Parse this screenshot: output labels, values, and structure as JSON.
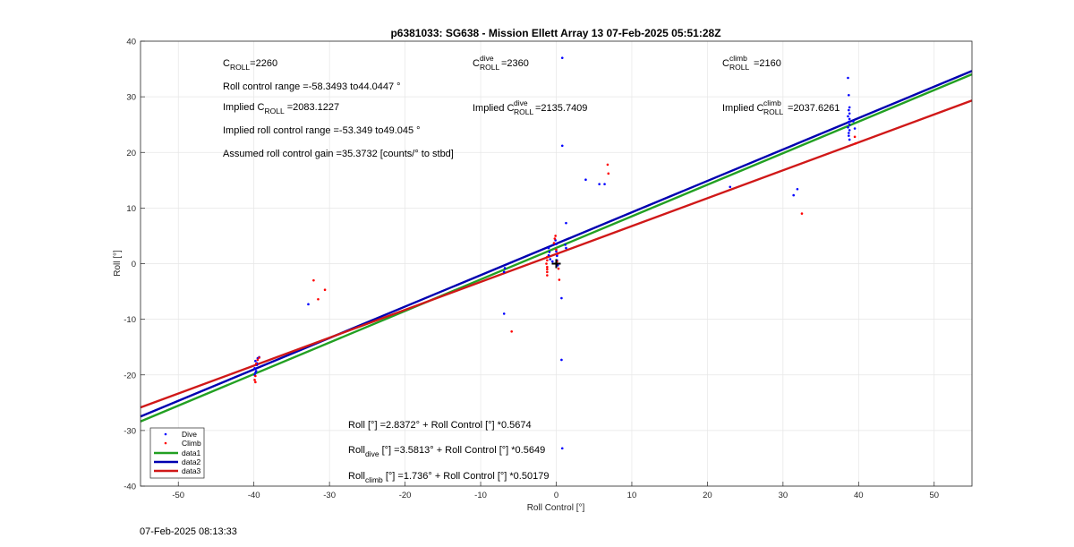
{
  "chart_data": {
    "type": "scatter",
    "title": "p6381033: SG638 - Mission Ellett Array 13 07-Feb-2025 05:51:28Z",
    "xlabel": "Roll Control [°]",
    "ylabel": "Roll [°]",
    "xlim": [
      -55,
      55
    ],
    "ylim": [
      -40,
      40
    ],
    "xticks": [
      "-50",
      "-40",
      "-30",
      "-20",
      "-10",
      "0",
      "10",
      "20",
      "30",
      "40",
      "50"
    ],
    "yticks": [
      "-40",
      "-30",
      "-20",
      "-10",
      "0",
      "10",
      "20",
      "30",
      "40"
    ],
    "grid": true,
    "legend_position": "bottom-left",
    "legend": [
      "Dive",
      "Climb",
      "data1",
      "data2",
      "data3"
    ],
    "colors": {
      "dive": "#0000ff",
      "climb": "#ff0000",
      "data1": "#22a022",
      "data2": "#0000b0",
      "data3": "#d01818"
    },
    "series": [
      {
        "name": "Dive",
        "kind": "scatter",
        "points": [
          [
            -39.5,
            -17.0
          ],
          [
            -39.3,
            -16.8
          ],
          [
            -39.8,
            -17.5
          ],
          [
            -39.6,
            -18.2
          ],
          [
            -39.9,
            -18.8
          ],
          [
            -39.7,
            -19.3
          ],
          [
            -39.8,
            -19.6
          ],
          [
            -39.9,
            -20.0
          ],
          [
            -39.6,
            -17.9
          ],
          [
            -32.8,
            -7.3
          ],
          [
            -6.9,
            -9.0
          ],
          [
            -6.9,
            -1.5
          ],
          [
            -6.8,
            -0.8
          ],
          [
            -1.0,
            2.8
          ],
          [
            -0.9,
            2.1
          ],
          [
            -1.0,
            1.5
          ],
          [
            -0.8,
            0.8
          ],
          [
            -0.5,
            0.4
          ],
          [
            0.0,
            3.5
          ],
          [
            0.0,
            2.2
          ],
          [
            0.1,
            1.4
          ],
          [
            0.1,
            0.6
          ],
          [
            -0.1,
            4.2
          ],
          [
            0.2,
            -0.3
          ],
          [
            0.8,
            37.0
          ],
          [
            0.8,
            21.2
          ],
          [
            0.7,
            -6.2
          ],
          [
            0.7,
            -17.3
          ],
          [
            0.8,
            -33.2
          ],
          [
            1.3,
            7.3
          ],
          [
            1.2,
            3.4
          ],
          [
            1.3,
            2.8
          ],
          [
            3.9,
            15.1
          ],
          [
            5.7,
            14.3
          ],
          [
            6.4,
            14.3
          ],
          [
            23.0,
            13.8
          ],
          [
            31.4,
            12.3
          ],
          [
            31.9,
            13.4
          ],
          [
            38.6,
            33.4
          ],
          [
            38.7,
            30.3
          ],
          [
            38.8,
            28.1
          ],
          [
            38.7,
            27.6
          ],
          [
            38.8,
            27.0
          ],
          [
            38.6,
            26.5
          ],
          [
            38.8,
            26.0
          ],
          [
            38.7,
            25.5
          ],
          [
            38.8,
            25.0
          ],
          [
            38.6,
            24.5
          ],
          [
            38.8,
            24.0
          ],
          [
            38.7,
            23.5
          ],
          [
            38.7,
            23.0
          ],
          [
            38.8,
            22.3
          ],
          [
            39.3,
            25.6
          ],
          [
            39.5,
            24.3
          ]
        ]
      },
      {
        "name": "Climb",
        "kind": "scatter",
        "points": [
          [
            -39.3,
            -16.9
          ],
          [
            -39.8,
            -20.2
          ],
          [
            -39.9,
            -20.9
          ],
          [
            -39.8,
            -21.3
          ],
          [
            -39.7,
            -18.0
          ],
          [
            -39.5,
            -17.3
          ],
          [
            -32.1,
            -3.0
          ],
          [
            -31.5,
            -6.4
          ],
          [
            -30.6,
            -4.7
          ],
          [
            -5.9,
            -12.2
          ],
          [
            -1.2,
            -2.1
          ],
          [
            -1.2,
            -1.5
          ],
          [
            -1.2,
            -1.0
          ],
          [
            -1.2,
            -0.6
          ],
          [
            -1.3,
            0.0
          ],
          [
            -1.2,
            0.6
          ],
          [
            -1.2,
            1.2
          ],
          [
            -0.3,
            3.7
          ],
          [
            -0.2,
            4.5
          ],
          [
            -0.1,
            5.0
          ],
          [
            0.0,
            2.5
          ],
          [
            0.2,
            1.8
          ],
          [
            0.1,
            0.4
          ],
          [
            0.3,
            -0.9
          ],
          [
            0.4,
            -2.9
          ],
          [
            6.8,
            17.8
          ],
          [
            6.9,
            16.2
          ],
          [
            32.5,
            9.0
          ],
          [
            39.6,
            21.6
          ],
          [
            39.5,
            22.8
          ]
        ]
      },
      {
        "name": "data1",
        "kind": "line",
        "intercept": 2.8372,
        "slope": 0.5674
      },
      {
        "name": "data2",
        "kind": "line",
        "intercept": 3.5813,
        "slope": 0.5649
      },
      {
        "name": "data3",
        "kind": "line",
        "intercept": 1.736,
        "slope": 0.50179
      }
    ],
    "marker": [
      0,
      0
    ],
    "annotations": {
      "c_roll_label": "C",
      "c_roll_sub": "ROLL",
      "c_roll_value": "=2260",
      "roll_range": "Roll control range =-58.3493 to44.0447 °",
      "implied_c_prefix": "Implied C",
      "implied_c_sub": "ROLL",
      "implied_c_value": "=2083.1227",
      "implied_range": "Implied roll control range =-53.349 to49.045 °",
      "gain": "Assumed roll control gain =35.3732 [counts/° to stbd]",
      "c_dive_label": "C",
      "c_dive_sup": "dive",
      "c_dive_sub": "ROLL",
      "c_dive_value": "=2360",
      "implied_dive_prefix": "Implied C",
      "implied_dive_sup": "dive",
      "implied_dive_sub": "ROLL",
      "implied_dive_value": "=2135.7409",
      "c_climb_label": "C",
      "c_climb_sup": "climb",
      "c_climb_sub": "ROLL",
      "c_climb_value": "=2160",
      "implied_climb_prefix": "Implied C",
      "implied_climb_sup": "climb",
      "implied_climb_sub": "ROLL",
      "implied_climb_value": "=2037.6261",
      "fit_all": "Roll [°] =2.8372° + Roll Control [°] *0.5674",
      "fit_dive_prefix": "Roll",
      "fit_dive_sub": "dive",
      "fit_dive_rest": " [°] =3.5813° + Roll Control [°] *0.5649",
      "fit_climb_prefix": "Roll",
      "fit_climb_sub": "climb",
      "fit_climb_rest": " [°] =1.736° + Roll Control [°] *0.50179"
    }
  },
  "footer": {
    "timestamp": "07-Feb-2025 08:13:33"
  }
}
